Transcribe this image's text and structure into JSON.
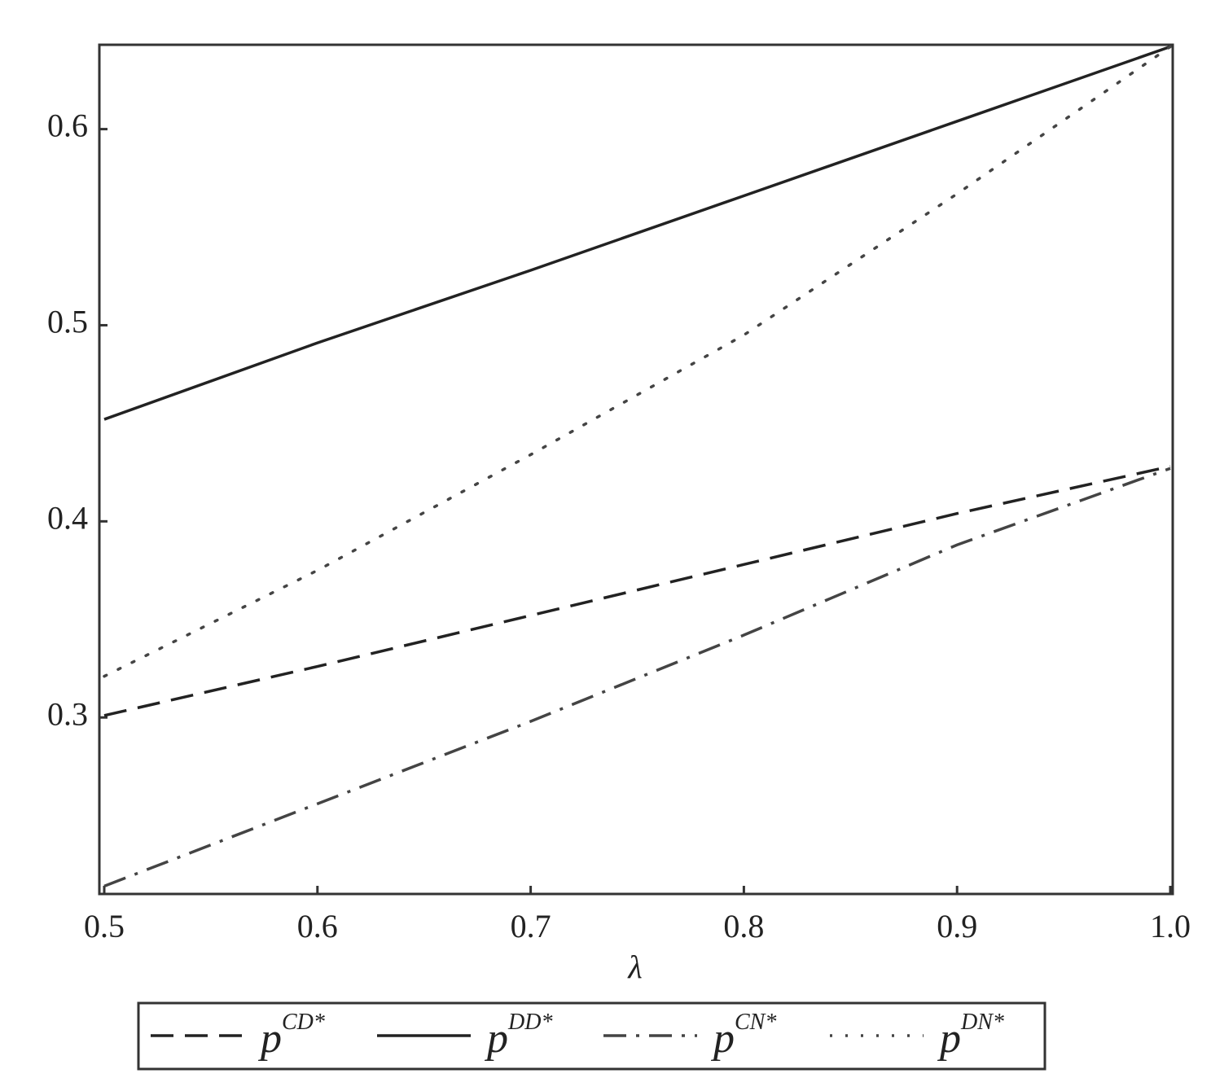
{
  "chart_data": {
    "type": "line",
    "x_label": "λ",
    "x": [
      0.5,
      0.6,
      0.7,
      0.8,
      0.9,
      1.0
    ],
    "series": [
      {
        "name": "pCD*",
        "color": "#222222",
        "style": "dash",
        "values": [
          0.301,
          0.326,
          0.352,
          0.378,
          0.404,
          0.428
        ]
      },
      {
        "name": "pDD*",
        "color": "#222222",
        "style": "solid",
        "values": [
          0.452,
          0.491,
          0.528,
          0.566,
          0.604,
          0.642
        ]
      },
      {
        "name": "pCN*",
        "color": "#444444",
        "style": "dashdot",
        "values": [
          0.214,
          0.256,
          0.298,
          0.342,
          0.388,
          0.427
        ]
      },
      {
        "name": "pDN*",
        "color": "#444444",
        "style": "dot",
        "values": [
          0.321,
          0.375,
          0.434,
          0.495,
          0.567,
          0.642
        ]
      }
    ],
    "xlim": [
      0.5,
      1.0
    ],
    "ylim": [
      0.21,
      0.643
    ],
    "xticks": [
      0.5,
      0.6,
      0.7,
      0.8,
      0.9,
      {
        "value": 1,
        "label": "1.0"
      }
    ],
    "yticks": [
      0.3,
      0.4,
      0.5,
      0.6
    ],
    "grid": false,
    "legend": "bottom"
  }
}
